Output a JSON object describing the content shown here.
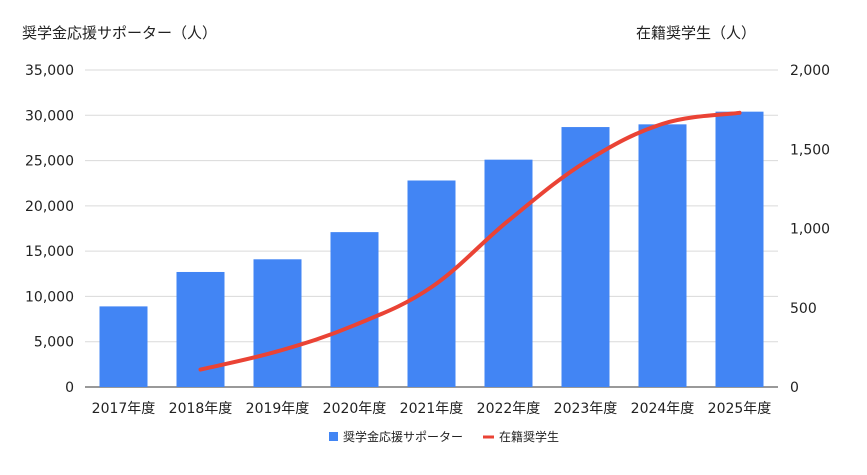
{
  "chart_data": {
    "type": "bar",
    "title": "",
    "categories": [
      "2017年度",
      "2018年度",
      "2019年度",
      "2020年度",
      "2021年度",
      "2022年度",
      "2023年度",
      "2024年度",
      "2025年度"
    ],
    "ylabel_left": "奨学金応援サポーター（人）",
    "ylabel_right": "在籍奨学生（人）",
    "ylim_left": [
      0,
      35000
    ],
    "ylim_right": [
      0,
      2000
    ],
    "yticks_left": [
      "0",
      "5,000",
      "10,000",
      "15,000",
      "20,000",
      "25,000",
      "30,000",
      "35,000"
    ],
    "yticks_right": [
      "0",
      "500",
      "1,000",
      "1,500",
      "2,000"
    ],
    "grid": true,
    "legend_position": "bottom",
    "series": [
      {
        "name": "奨学金応援サポーター",
        "type": "bar",
        "axis": "left",
        "color": "#4285f4",
        "values": [
          8900,
          12700,
          14100,
          17100,
          22800,
          25100,
          28700,
          29000,
          30400
        ]
      },
      {
        "name": "在籍奨学生",
        "type": "line",
        "axis": "right",
        "color": "#ea4335",
        "values": [
          null,
          110,
          225,
          390,
          630,
          1050,
          1420,
          1660,
          1730
        ]
      }
    ]
  }
}
